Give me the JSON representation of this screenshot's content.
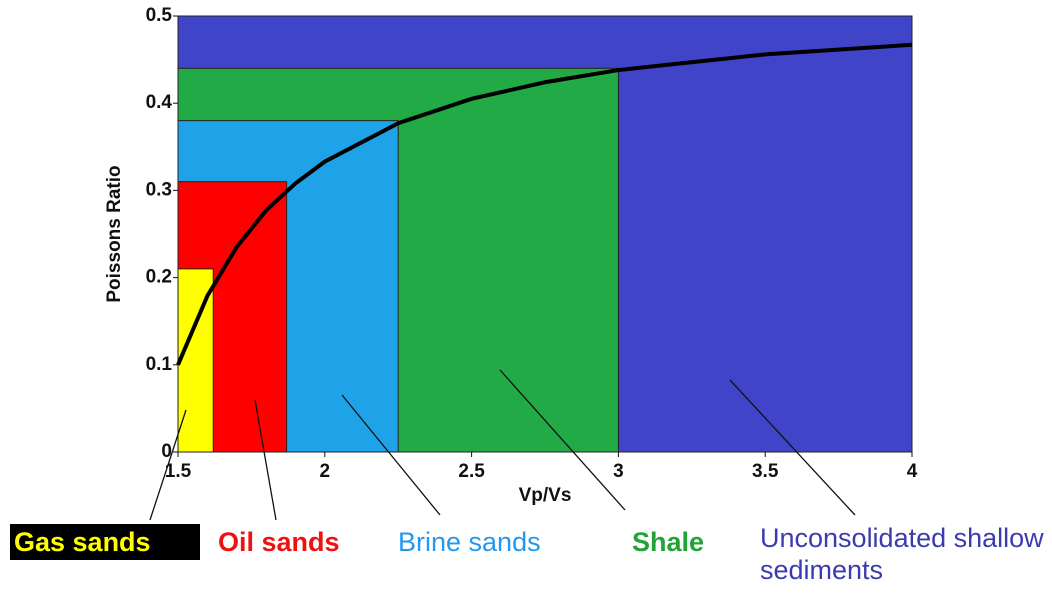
{
  "chart_data": {
    "type": "region",
    "x_label": "Vp/Vs",
    "y_label": "Poissons Ratio",
    "xlim": [
      1.5,
      4
    ],
    "ylim": [
      0,
      0.5
    ],
    "xticks": [
      1.5,
      2,
      2.5,
      3,
      3.5,
      4
    ],
    "yticks": [
      0,
      0.1,
      0.2,
      0.3,
      0.4,
      0.5
    ],
    "regions": [
      {
        "name": "Unconsolidated shallow sediments",
        "color": "#3f44c8",
        "label_color": "#3b3bb0",
        "xmax": 4,
        "ymax": 0.5
      },
      {
        "name": "Shale",
        "color": "#22aa47",
        "label_color": "#22a335",
        "xmax": 3,
        "ymax": 0.44
      },
      {
        "name": "Brine sands",
        "color": "#1ea2e8",
        "label_color": "#2299ee",
        "xmax": 2.25,
        "ymax": 0.38
      },
      {
        "name": "Oil sands",
        "color": "#ff0000",
        "label_color": "#ee1111",
        "xmax": 1.87,
        "ymax": 0.31
      },
      {
        "name": "Gas sands",
        "color": "#ffff00",
        "label_color": "#ffff00",
        "label_background": "#000000",
        "xmax": 1.62,
        "ymax": 0.21
      }
    ],
    "line": {
      "color": "#000000",
      "x": [
        1.5,
        1.6,
        1.7,
        1.8,
        1.9,
        2.0,
        2.25,
        2.5,
        2.75,
        3.0,
        3.5,
        4.0
      ],
      "values": [
        0.1,
        0.179,
        0.235,
        0.277,
        0.308,
        0.333,
        0.377,
        0.405,
        0.424,
        0.438,
        0.456,
        0.467
      ]
    }
  }
}
